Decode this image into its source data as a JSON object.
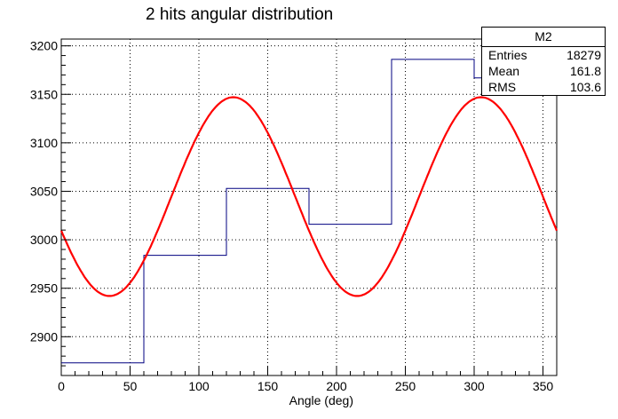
{
  "chart_data": {
    "type": "line",
    "title": "2 hits angular distribution",
    "xlabel": "Angle (deg)",
    "ylabel": "",
    "xlim": [
      0,
      360
    ],
    "ylim": [
      2860,
      3207
    ],
    "grid": true,
    "x_ticks": [
      0,
      50,
      100,
      150,
      200,
      250,
      300,
      350
    ],
    "y_ticks": [
      2900,
      2950,
      3000,
      3050,
      3100,
      3150,
      3200
    ],
    "series": [
      {
        "kind": "histogram",
        "color": "#000080",
        "bins": [
          {
            "x0": 0,
            "x1": 60,
            "value": 2873
          },
          {
            "x0": 60,
            "x1": 120,
            "value": 2984
          },
          {
            "x0": 120,
            "x1": 180,
            "value": 3053
          },
          {
            "x0": 180,
            "x1": 240,
            "value": 3016
          },
          {
            "x0": 240,
            "x1": 300,
            "value": 3186
          },
          {
            "x0": 300,
            "x1": 360,
            "value": 3167
          }
        ]
      },
      {
        "kind": "fit-curve",
        "color": "#ff0000",
        "function": "sinusoid",
        "offset": 3044.5,
        "amplitude": 102.5,
        "period": 180,
        "phase_deg": 35,
        "minima_x": [
          35,
          215
        ],
        "maxima_x": [
          125,
          305
        ]
      }
    ],
    "stats_box": {
      "name": "M2",
      "entries_label": "Entries",
      "entries_value": "18279",
      "mean_label": "Mean",
      "mean_value": "161.8",
      "rms_label": "RMS",
      "rms_value": "103.6"
    }
  }
}
